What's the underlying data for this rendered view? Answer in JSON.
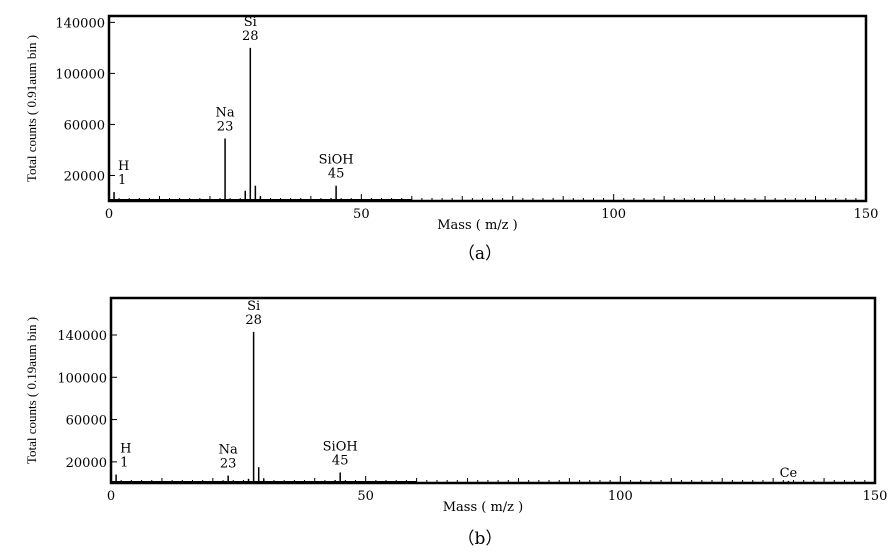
{
  "chart_data": [
    {
      "type": "bar",
      "panel": "(a)",
      "xlabel": "Mass ( m/z )",
      "ylabel": "Total counts ( 0.91aum bin )",
      "xlim": [
        0,
        150
      ],
      "ylim": [
        0,
        145000
      ],
      "xticks": [
        "0",
        "50",
        "100",
        "150"
      ],
      "yticks": [
        "20000",
        "60000",
        "100000",
        "140000"
      ],
      "ytick_values": [
        20000,
        60000,
        100000,
        140000
      ],
      "peaks": [
        {
          "x": 1,
          "y": 7000
        },
        {
          "x": 23,
          "y": 49000
        },
        {
          "x": 24,
          "y": 1500
        },
        {
          "x": 27,
          "y": 8000
        },
        {
          "x": 28,
          "y": 120000
        },
        {
          "x": 29,
          "y": 12000
        },
        {
          "x": 30,
          "y": 3500
        },
        {
          "x": 44,
          "y": 2000
        },
        {
          "x": 45,
          "y": 12000
        },
        {
          "x": 46,
          "y": 1500
        },
        {
          "x": 57,
          "y": 1000
        }
      ],
      "annotations": [
        {
          "name": "H",
          "mass": "1",
          "x": 1
        },
        {
          "name": "Na",
          "mass": "23",
          "x": 23
        },
        {
          "name": "Si",
          "mass": "28",
          "x": 28
        },
        {
          "name": "SiOH",
          "mass": "45",
          "x": 45
        }
      ]
    },
    {
      "type": "bar",
      "panel": "(b)",
      "xlabel": "Mass ( m/z )",
      "ylabel": "Total counts ( 0.19aum bin )",
      "xlim": [
        0,
        150
      ],
      "ylim": [
        0,
        175000
      ],
      "xticks": [
        "0",
        "50",
        "100",
        "150"
      ],
      "yticks": [
        "20000",
        "60000",
        "100000",
        "140000"
      ],
      "ytick_values": [
        20000,
        60000,
        100000,
        140000
      ],
      "peaks": [
        {
          "x": 1,
          "y": 8000
        },
        {
          "x": 23,
          "y": 7000
        },
        {
          "x": 27,
          "y": 4000
        },
        {
          "x": 28,
          "y": 143000
        },
        {
          "x": 29,
          "y": 15000
        },
        {
          "x": 30,
          "y": 3500
        },
        {
          "x": 44,
          "y": 2500
        },
        {
          "x": 45,
          "y": 10000
        },
        {
          "x": 46,
          "y": 1500
        },
        {
          "x": 57,
          "y": 1000
        },
        {
          "x": 133,
          "y": 2000
        }
      ],
      "annotations": [
        {
          "name": "H",
          "mass": "1",
          "x": 1
        },
        {
          "name": "Na",
          "mass": "23",
          "x": 23
        },
        {
          "name": "Si",
          "mass": "28",
          "x": 28
        },
        {
          "name": "SiOH",
          "mass": "45",
          "x": 45
        },
        {
          "name": "Ce",
          "mass": "",
          "x": 133
        }
      ]
    }
  ],
  "captions": [
    "（a）",
    "（b）"
  ],
  "colors": {
    "axis": "#000000",
    "peak": "#000000",
    "background": "#ffffff"
  }
}
